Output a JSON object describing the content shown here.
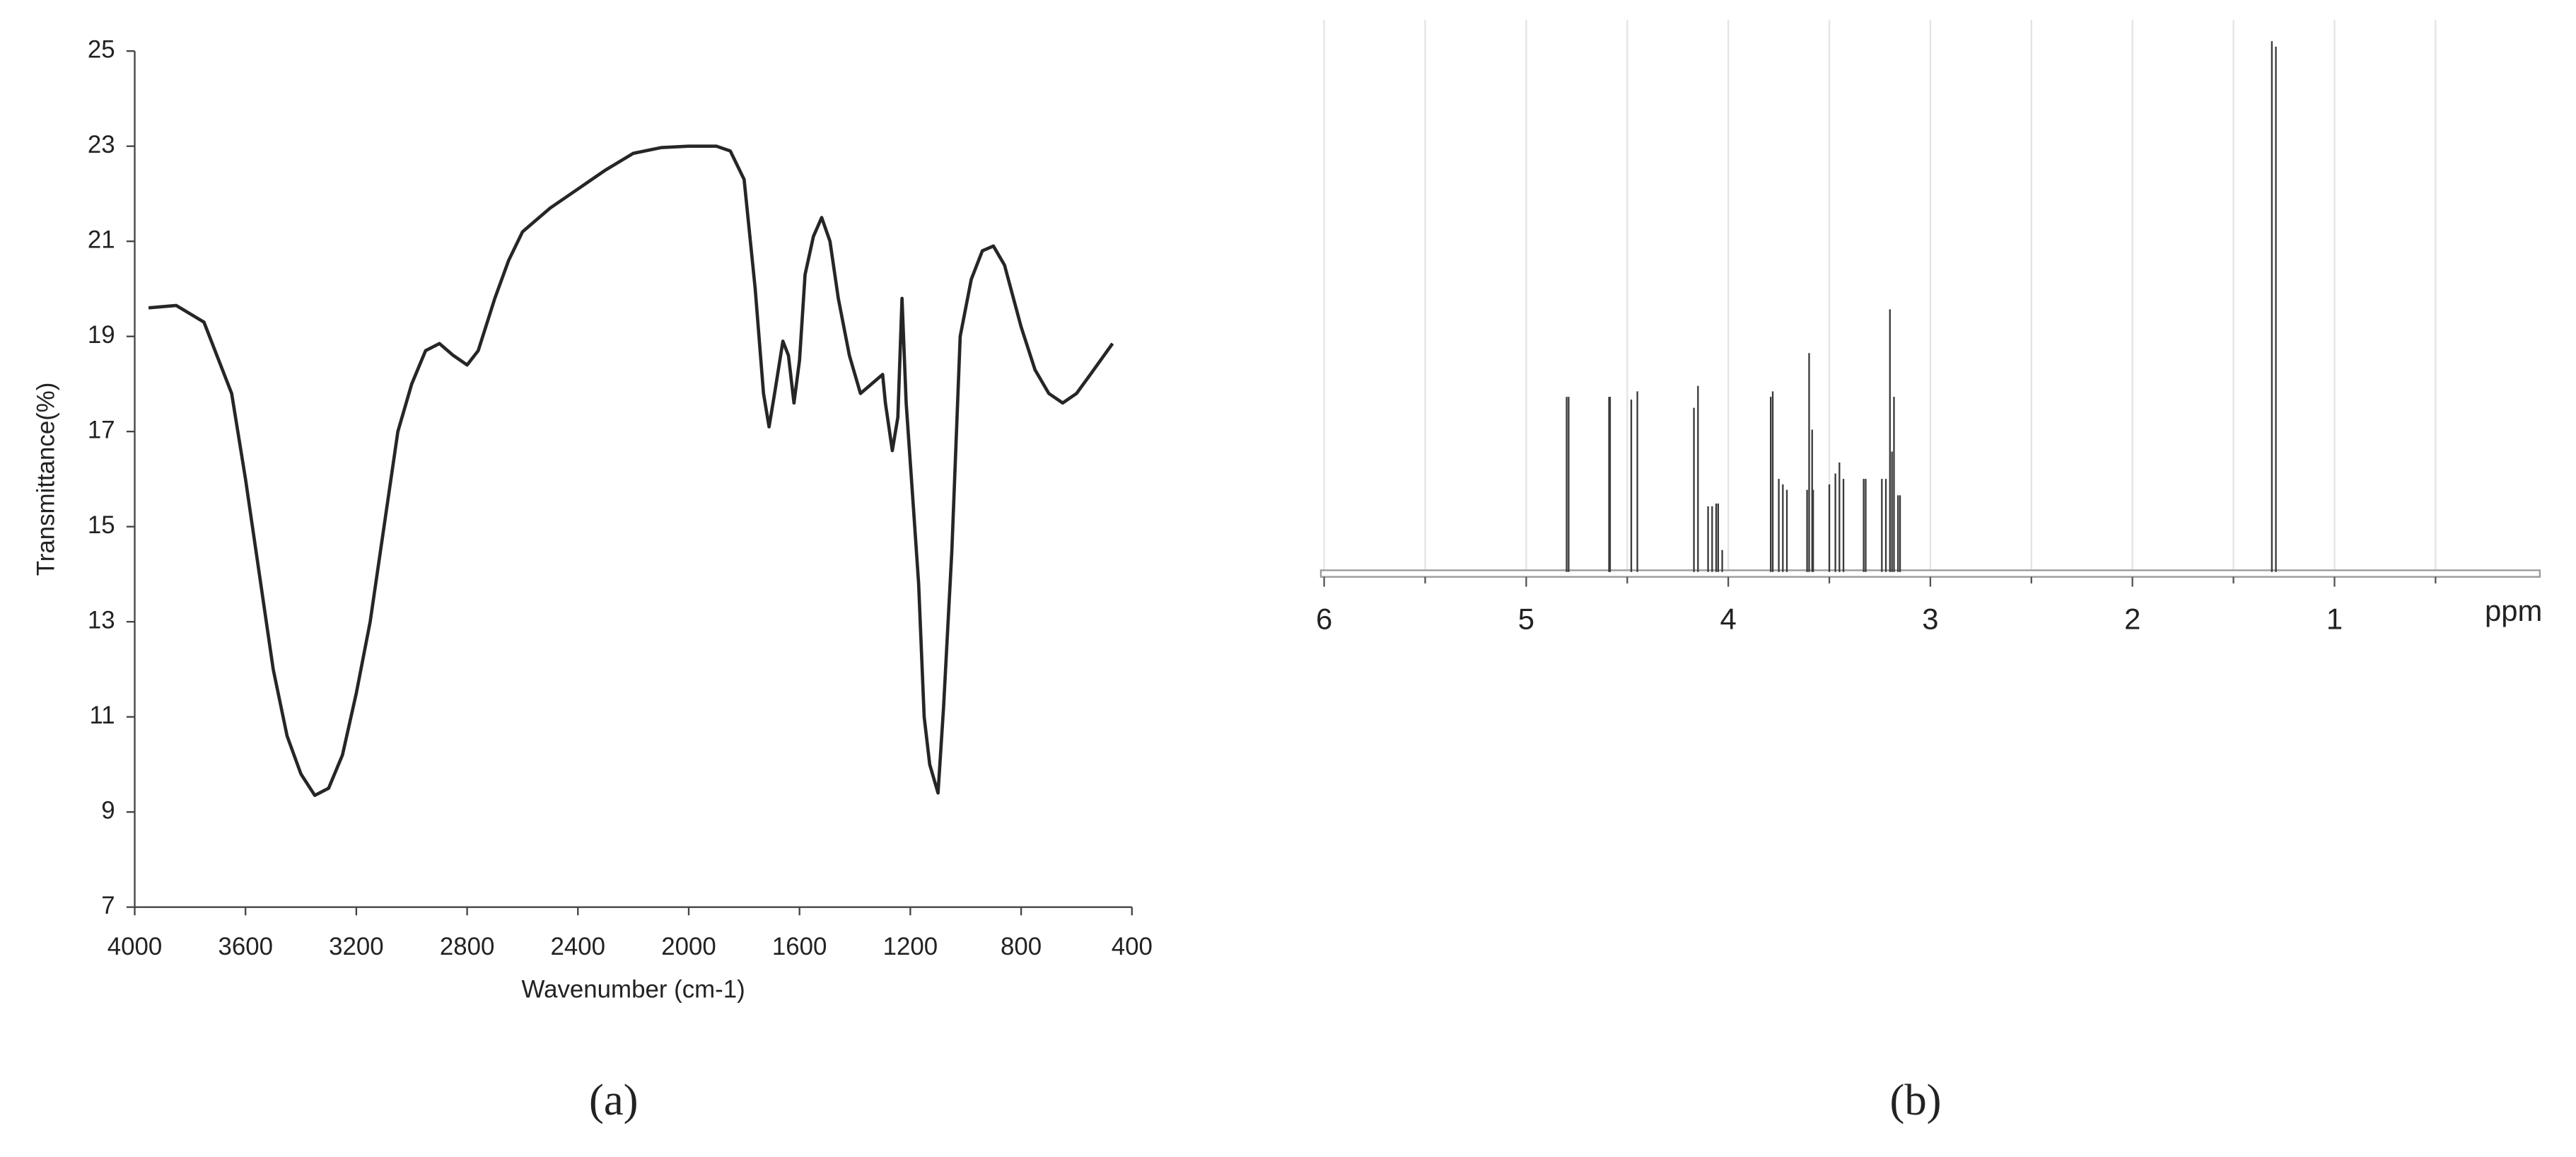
{
  "chart_data": [
    {
      "type": "line",
      "caption": "(a)",
      "xlabel": "Wavenumber (cm-1)",
      "ylabel": "Transmittance(%)",
      "xlim": [
        4000,
        400
      ],
      "xticks": [
        4000,
        3600,
        3200,
        2800,
        2400,
        2000,
        1600,
        1200,
        800,
        400
      ],
      "ylim": [
        7,
        25
      ],
      "yticks": [
        7,
        9,
        11,
        13,
        15,
        17,
        19,
        21,
        23,
        25
      ],
      "series": [
        {
          "color": "#262626",
          "x": [
            3950,
            3850,
            3750,
            3650,
            3600,
            3550,
            3500,
            3450,
            3400,
            3350,
            3300,
            3250,
            3200,
            3150,
            3100,
            3050,
            3000,
            2950,
            2900,
            2850,
            2800,
            2760,
            2700,
            2650,
            2600,
            2500,
            2400,
            2300,
            2200,
            2100,
            2000,
            1900,
            1850,
            1800,
            1760,
            1730,
            1710,
            1690,
            1660,
            1640,
            1620,
            1600,
            1580,
            1550,
            1520,
            1490,
            1460,
            1420,
            1380,
            1340,
            1300,
            1290,
            1265,
            1245,
            1230,
            1215,
            1190,
            1170,
            1150,
            1130,
            1100,
            1080,
            1050,
            1020,
            980,
            940,
            900,
            860,
            800,
            750,
            700,
            650,
            600,
            550,
            470
          ],
          "values": [
            19.6,
            19.65,
            19.3,
            17.8,
            16,
            14,
            12,
            10.6,
            9.8,
            9.35,
            9.5,
            10.2,
            11.5,
            13,
            15,
            17,
            18,
            18.7,
            18.85,
            18.6,
            18.4,
            18.7,
            19.8,
            20.6,
            21.2,
            21.7,
            22.1,
            22.5,
            22.85,
            22.97,
            23,
            23,
            22.9,
            22.3,
            20,
            17.8,
            17.1,
            17.8,
            18.9,
            18.6,
            17.6,
            18.5,
            20.3,
            21.1,
            21.5,
            21,
            19.8,
            18.6,
            17.8,
            18,
            18.2,
            17.6,
            16.6,
            17.3,
            19.8,
            17.6,
            15.5,
            13.8,
            11,
            10,
            9.4,
            11.2,
            14.5,
            19,
            20.2,
            20.8,
            20.9,
            20.5,
            19.2,
            18.3,
            17.8,
            17.6,
            17.8,
            18.2,
            18.85
          ]
        }
      ]
    },
    {
      "type": "stick",
      "caption": "(b)",
      "xlabel": "ppm",
      "xlim": [
        6,
        0
      ],
      "xticks": [
        6,
        5,
        4,
        3,
        2,
        1
      ],
      "minor_xticks": [
        5.5,
        4.5,
        3.5,
        2.5,
        1.5,
        0.5
      ],
      "ylim": [
        0,
        100
      ],
      "series": [
        {
          "color": "#3a3a3a",
          "x": [
            4.8,
            4.79,
            4.59,
            4.585,
            4.48,
            4.45,
            4.17,
            4.15,
            4.1,
            4.08,
            4.06,
            4.05,
            4.03,
            3.79,
            3.78,
            3.75,
            3.73,
            3.71,
            3.61,
            3.6,
            3.585,
            3.58,
            3.5,
            3.47,
            3.45,
            3.43,
            3.33,
            3.32,
            3.24,
            3.22,
            3.2,
            3.19,
            3.18,
            3.16,
            3.15,
            1.31,
            1.29
          ],
          "values": [
            32,
            32,
            32,
            32,
            31.5,
            33,
            30,
            34,
            12,
            12,
            12.5,
            12.5,
            4,
            32,
            33,
            17,
            16,
            15,
            15,
            40,
            26,
            15,
            16,
            18,
            20,
            17,
            17,
            17,
            17,
            17,
            48,
            22,
            32,
            14,
            14,
            97,
            96
          ]
        }
      ]
    }
  ]
}
